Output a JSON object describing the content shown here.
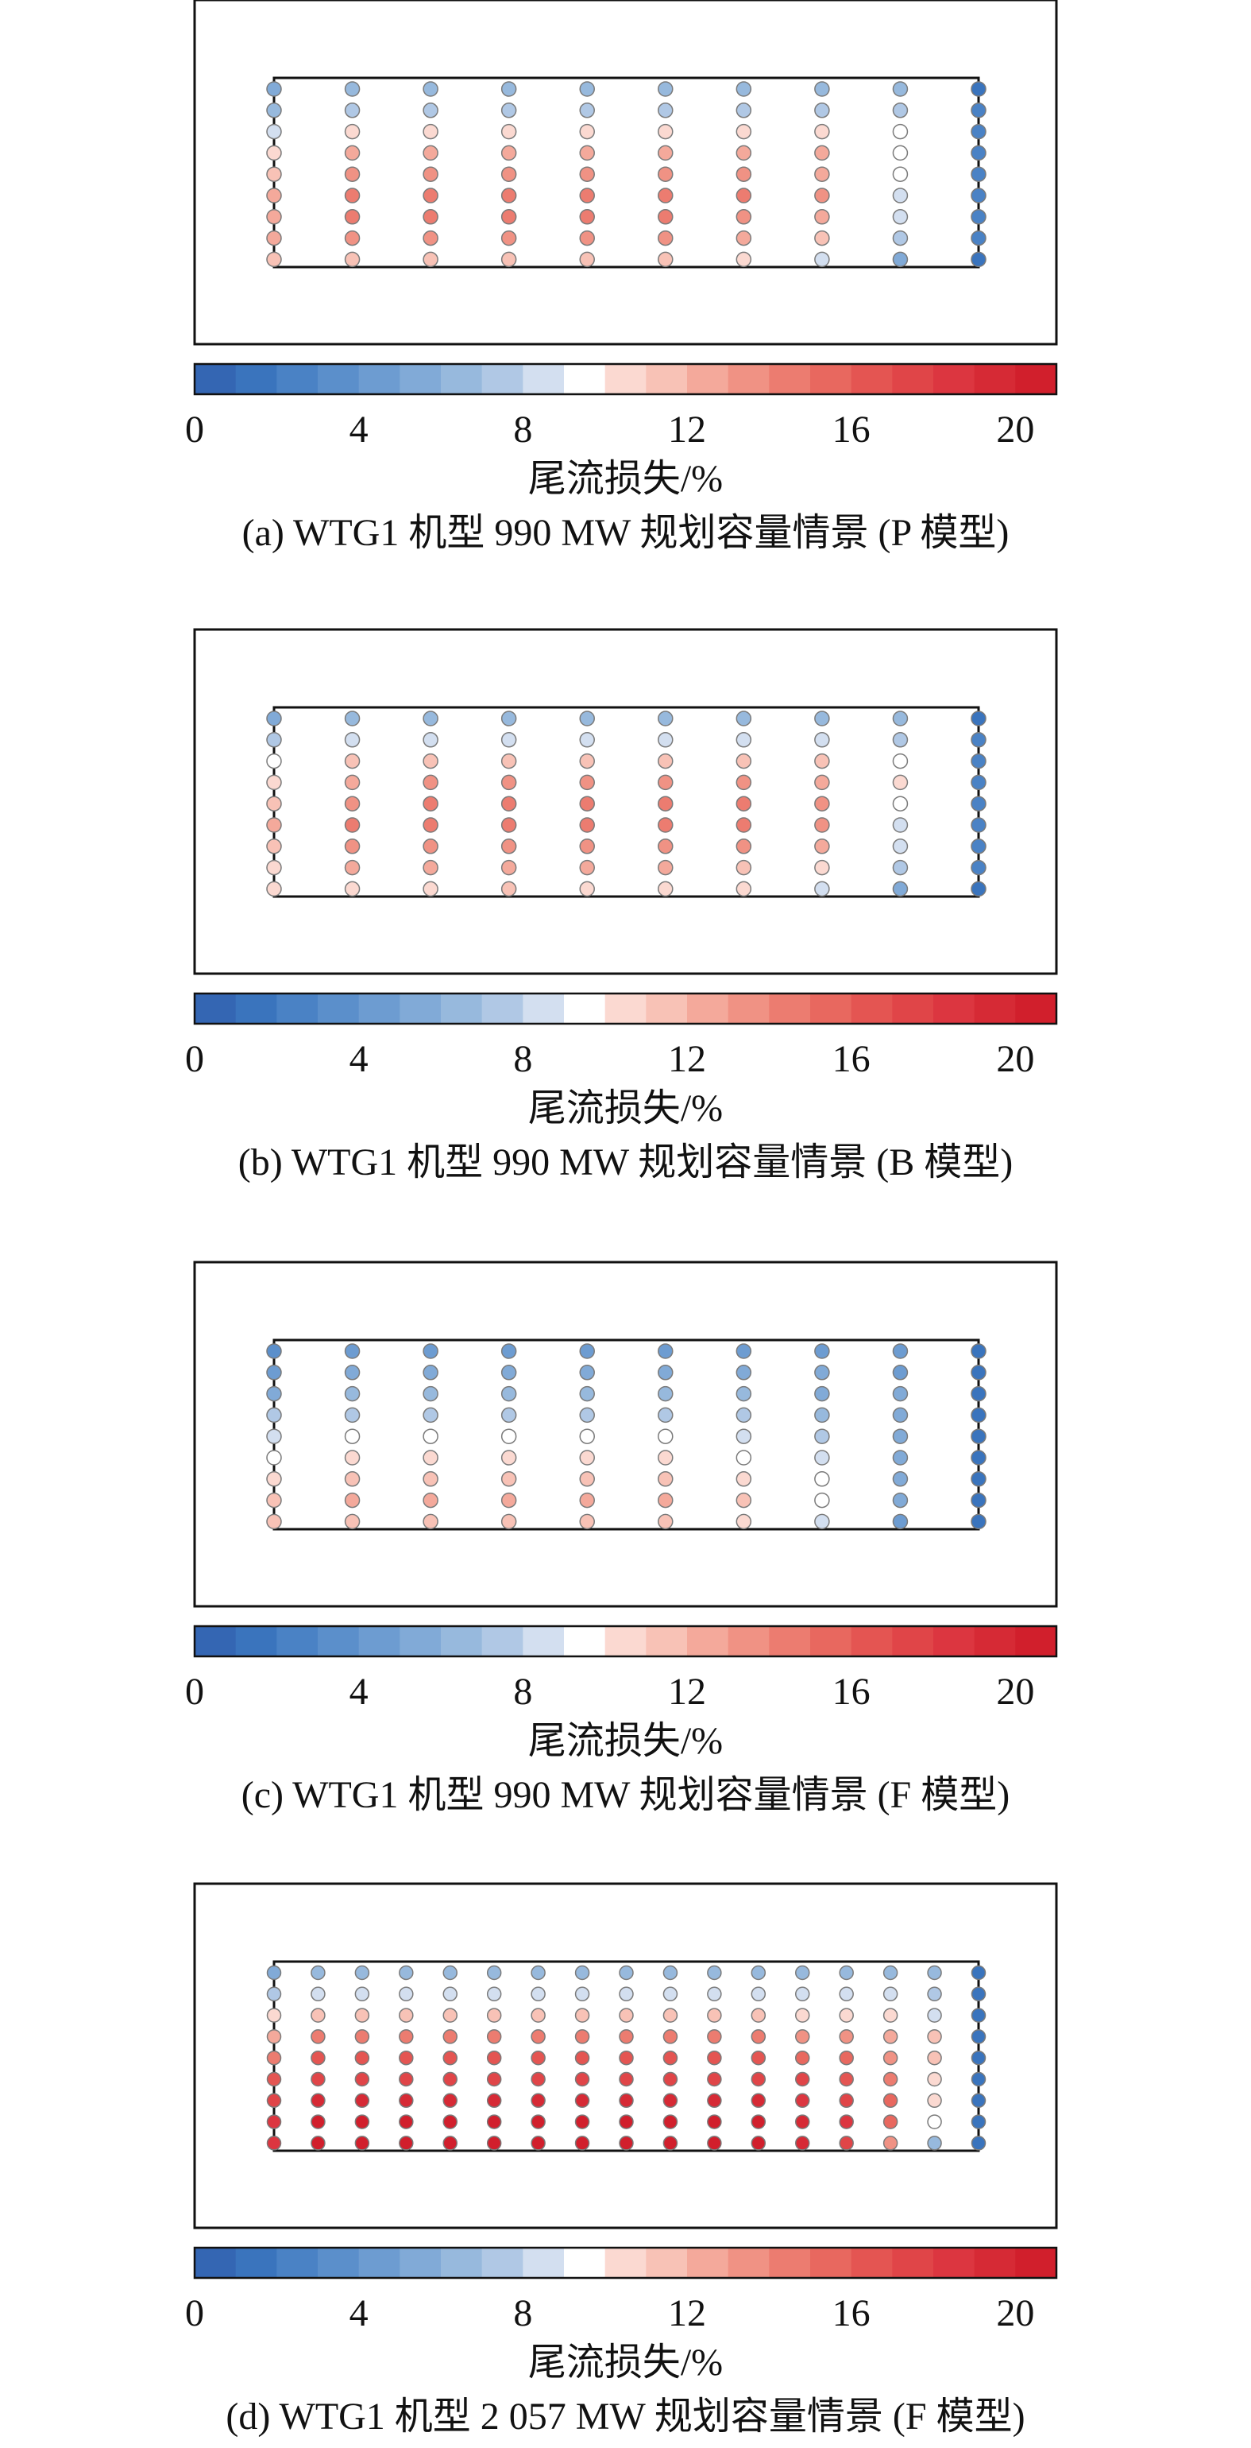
{
  "colorbar": {
    "ticks": [
      "0",
      "4",
      "8",
      "12",
      "16",
      "20"
    ],
    "tick_values": [
      0,
      4,
      8,
      12,
      16,
      20
    ],
    "range": [
      0,
      21
    ],
    "label": "尾流损失/%",
    "colors": [
      "#3466b3",
      "#3a74bd",
      "#4a82c5",
      "#5b8fcb",
      "#6d9cd1",
      "#81aad7",
      "#97b9dd",
      "#b0c8e5",
      "#d3dff0",
      "#ffffff",
      "#fbd9d1",
      "#f8c2b6",
      "#f4a99b",
      "#f09284",
      "#ec7c70",
      "#e8685f",
      "#e45552",
      "#e04548",
      "#dc3640",
      "#d62a35",
      "#d11f2c"
    ]
  },
  "panels": [
    {
      "caption": "(a) WTG1 机型 990 MW 规划容量情景 (P 模型)"
    },
    {
      "caption": "(b) WTG1 机型 990 MW 规划容量情景 (B 模型)"
    },
    {
      "caption": "(c) WTG1 机型 990 MW 规划容量情景 (F 模型)"
    },
    {
      "caption": "(d) WTG1 机型 2 057 MW 规划容量情景 (F 模型)"
    }
  ],
  "chart_data": [
    {
      "type": "scatter",
      "title": "(a) WTG1 机型 990 MW 规划容量情景 (P 模型)",
      "colorbar_label": "尾流损失/%",
      "value_range": [
        0,
        21
      ],
      "columns": 10,
      "rows": 9,
      "note": "wake loss (%) per turbine; columns left→right, rows top→bottom",
      "values": [
        [
          5,
          6,
          6,
          6,
          6,
          6,
          6,
          6,
          6,
          1
        ],
        [
          6,
          7,
          7,
          7,
          7,
          7,
          7,
          7,
          7,
          2
        ],
        [
          8,
          10,
          10,
          10,
          10,
          10,
          10,
          10,
          9,
          2
        ],
        [
          10,
          12,
          12,
          12,
          12,
          12,
          12,
          12,
          9,
          2
        ],
        [
          11,
          13,
          13,
          13,
          13,
          13,
          13,
          12,
          9,
          2
        ],
        [
          12,
          14,
          14,
          14,
          14,
          14,
          14,
          13,
          8,
          2
        ],
        [
          12,
          14,
          14,
          14,
          14,
          14,
          13,
          12,
          8,
          2
        ],
        [
          12,
          13,
          13,
          13,
          13,
          13,
          12,
          11,
          7,
          2
        ],
        [
          11,
          11,
          11,
          11,
          11,
          11,
          10,
          8,
          5,
          1
        ]
      ]
    },
    {
      "type": "scatter",
      "title": "(b) WTG1 机型 990 MW 规划容量情景 (B 模型)",
      "colorbar_label": "尾流损失/%",
      "value_range": [
        0,
        21
      ],
      "columns": 10,
      "rows": 9,
      "note": "wake loss (%) per turbine; columns left→right, rows top→bottom",
      "values": [
        [
          5,
          6,
          6,
          6,
          6,
          6,
          6,
          6,
          6,
          1
        ],
        [
          7,
          8,
          8,
          8,
          8,
          8,
          8,
          8,
          7,
          2
        ],
        [
          9,
          11,
          11,
          11,
          11,
          11,
          11,
          11,
          9,
          2
        ],
        [
          10,
          12,
          13,
          13,
          13,
          13,
          13,
          12,
          10,
          2
        ],
        [
          11,
          13,
          14,
          14,
          14,
          14,
          14,
          13,
          9,
          2
        ],
        [
          12,
          14,
          14,
          14,
          14,
          14,
          14,
          13,
          8,
          2
        ],
        [
          11,
          13,
          13,
          13,
          13,
          13,
          13,
          12,
          8,
          2
        ],
        [
          10,
          12,
          12,
          12,
          12,
          12,
          11,
          10,
          7,
          2
        ],
        [
          10,
          10,
          10,
          11,
          10,
          10,
          10,
          8,
          5,
          1
        ]
      ]
    },
    {
      "type": "scatter",
      "title": "(c) WTG1 机型 990 MW 规划容量情景 (F 模型)",
      "colorbar_label": "尾流损失/%",
      "value_range": [
        0,
        21
      ],
      "columns": 10,
      "rows": 9,
      "note": "wake loss (%) per turbine; columns left→right, rows top→bottom",
      "values": [
        [
          3,
          4,
          4,
          4,
          4,
          4,
          4,
          4,
          4,
          1
        ],
        [
          4,
          5,
          5,
          5,
          5,
          5,
          5,
          5,
          4,
          1
        ],
        [
          5,
          6,
          6,
          6,
          6,
          6,
          6,
          5,
          5,
          1
        ],
        [
          7,
          7,
          7,
          7,
          7,
          7,
          7,
          6,
          5,
          1
        ],
        [
          8,
          9,
          9,
          9,
          9,
          9,
          8,
          7,
          5,
          1
        ],
        [
          9,
          10,
          10,
          10,
          10,
          10,
          9,
          8,
          5,
          1
        ],
        [
          10,
          11,
          11,
          11,
          11,
          11,
          10,
          9,
          5,
          1
        ],
        [
          11,
          12,
          12,
          12,
          12,
          12,
          11,
          9,
          5,
          1
        ],
        [
          11,
          11,
          11,
          11,
          11,
          11,
          10,
          8,
          4,
          1
        ]
      ]
    },
    {
      "type": "scatter",
      "title": "(d) WTG1 机型 2 057 MW 规划容量情景 (F 模型)",
      "colorbar_label": "尾流损失/%",
      "value_range": [
        0,
        21
      ],
      "columns": 17,
      "rows": 9,
      "note": "wake loss (%) per turbine; columns left→right, rows top→bottom",
      "values": [
        [
          5,
          6,
          6,
          6,
          6,
          6,
          6,
          6,
          6,
          6,
          6,
          6,
          6,
          6,
          6,
          6,
          1
        ],
        [
          7,
          8,
          8,
          8,
          8,
          8,
          8,
          8,
          8,
          8,
          8,
          8,
          8,
          8,
          8,
          7,
          1
        ],
        [
          10,
          11,
          11,
          11,
          11,
          11,
          11,
          11,
          11,
          11,
          11,
          11,
          10,
          10,
          10,
          8,
          1
        ],
        [
          12,
          14,
          14,
          14,
          14,
          14,
          14,
          14,
          14,
          14,
          14,
          14,
          13,
          13,
          12,
          11,
          1
        ],
        [
          14,
          16,
          16,
          16,
          16,
          16,
          16,
          16,
          16,
          16,
          16,
          16,
          15,
          15,
          13,
          11,
          1
        ],
        [
          16,
          17,
          17,
          17,
          17,
          17,
          17,
          17,
          17,
          17,
          17,
          17,
          17,
          16,
          14,
          10,
          1
        ],
        [
          17,
          19,
          19,
          19,
          19,
          19,
          19,
          19,
          19,
          19,
          19,
          19,
          18,
          17,
          15,
          10,
          1
        ],
        [
          18,
          20,
          20,
          20,
          20,
          20,
          20,
          20,
          20,
          20,
          20,
          20,
          19,
          18,
          15,
          9,
          1
        ],
        [
          18,
          20,
          20,
          20,
          20,
          20,
          20,
          20,
          20,
          20,
          20,
          20,
          19,
          17,
          13,
          6,
          1
        ]
      ]
    }
  ]
}
